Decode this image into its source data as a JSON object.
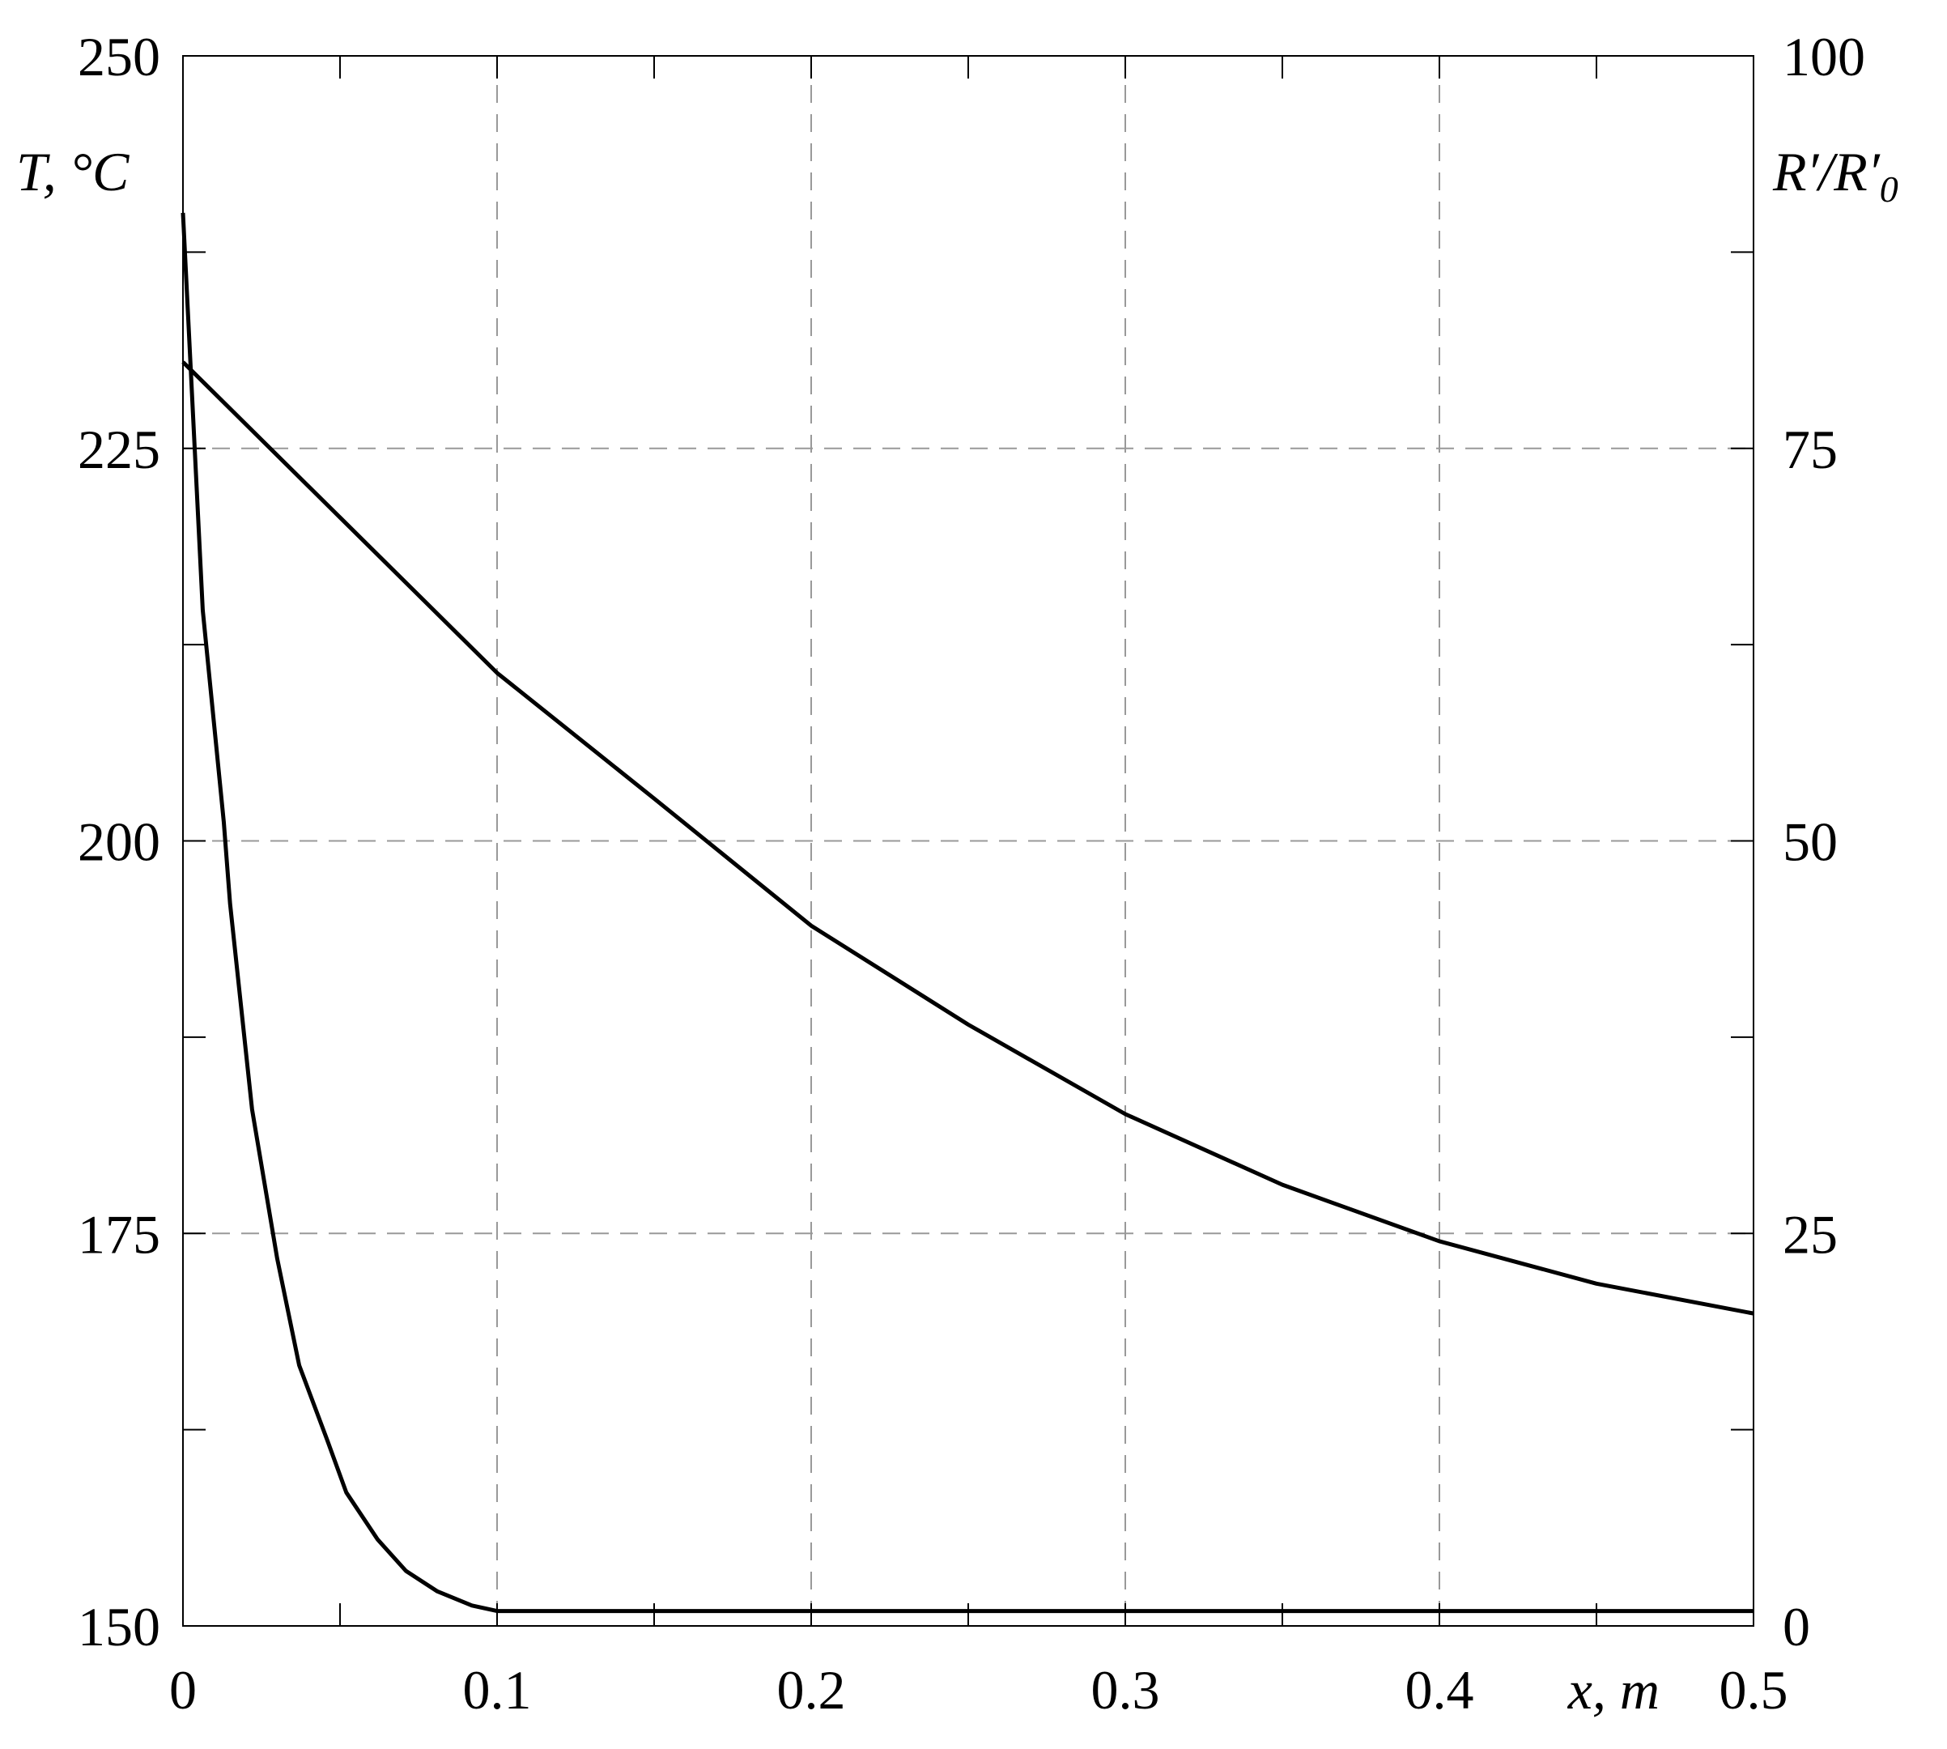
{
  "chart_data": {
    "type": "line",
    "xlabel": "x, m",
    "ylabel": "T, °C",
    "y2label": "R′/R′",
    "y2label_sub": "0",
    "xlim": [
      0,
      0.5
    ],
    "xticks": [
      0,
      0.1,
      0.2,
      0.3,
      0.4,
      0.5
    ],
    "xminor": [
      0.05,
      0.15,
      0.25,
      0.35,
      0.45
    ],
    "ylim": [
      150,
      250
    ],
    "yticks": [
      150,
      175,
      200,
      225,
      250
    ],
    "yminor": [
      162.5,
      187.5,
      212.5,
      237.5
    ],
    "y2lim": [
      0,
      100
    ],
    "y2ticks": [
      0,
      25,
      50,
      75,
      100
    ],
    "grid": true,
    "color": "#000000",
    "series": [
      {
        "x": [
          0,
          0.05,
          0.1,
          0.15,
          0.2,
          0.25,
          0.3,
          0.35,
          0.4,
          0.45,
          0.5
        ],
        "values": [
          230.5,
          220.6,
          210.7,
          202.7,
          194.6,
          188.3,
          182.6,
          178.1,
          174.5,
          171.8,
          169.9
        ]
      },
      {
        "axis": "y2",
        "x": [
          0,
          0.0063,
          0.013,
          0.015,
          0.022,
          0.03,
          0.037,
          0.046,
          0.052,
          0.062,
          0.071,
          0.081,
          0.092,
          0.1,
          0.5
        ],
        "values": [
          90,
          64.7,
          51.2,
          46,
          32.9,
          23.4,
          16.6,
          11.8,
          8.5,
          5.5,
          3.5,
          2.2,
          1.3,
          0.95,
          0.95
        ]
      }
    ]
  }
}
